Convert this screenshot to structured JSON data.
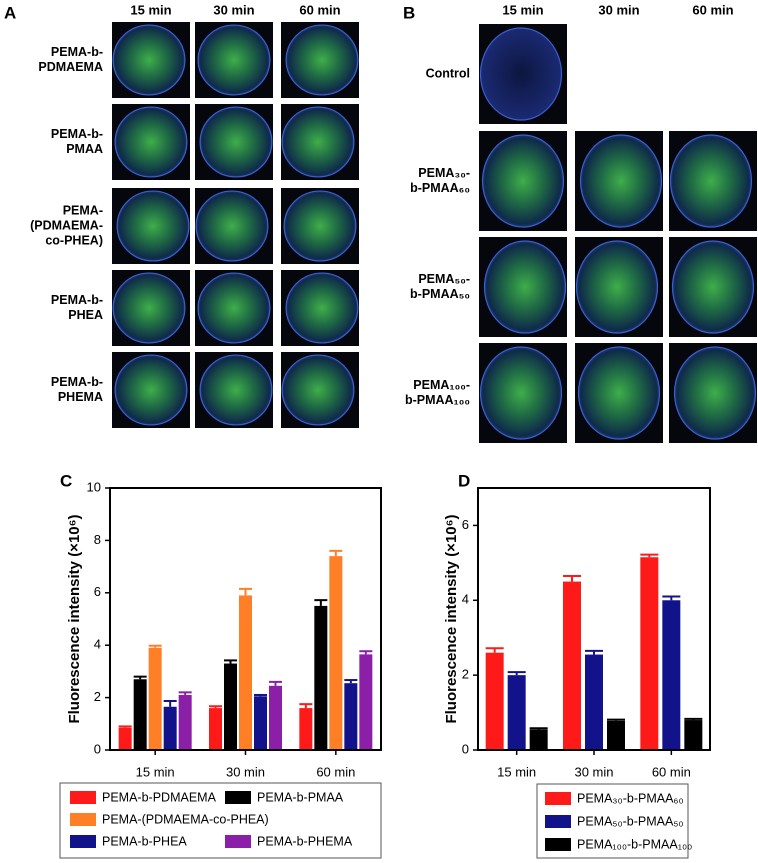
{
  "panel_a": {
    "label": "A",
    "columns": [
      "15 min",
      "30 min",
      "60 min"
    ],
    "rows": [
      [
        "PEMA-b-",
        "PDMAEMA"
      ],
      [
        "PEMA-b-",
        "PMAA"
      ],
      [
        "PEMA-",
        "(PDMAEMA-",
        "co-PHEA)"
      ],
      [
        "PEMA-b-",
        "PHEA"
      ],
      [
        "PEMA-b-",
        "PHEMA"
      ]
    ]
  },
  "panel_b": {
    "label": "B",
    "columns": [
      "15 min",
      "30 min",
      "60 min"
    ],
    "rows": [
      [
        "Control"
      ],
      [
        "PEMA₃₀-",
        "b-PMAA₆₀"
      ],
      [
        "PEMA₅₀-",
        "b-PMAA₅₀"
      ],
      [
        "PEMA₁₀₀-",
        "b-PMAA₁₀₀"
      ]
    ]
  },
  "chart_data": [
    {
      "type": "bar",
      "panel_label": "C",
      "y_label": "Fluorescence intensity (×10⁶)",
      "categories": [
        "15 min",
        "30 min",
        "60 min"
      ],
      "ylim": [
        0,
        10
      ],
      "yticks": [
        0,
        2,
        4,
        6,
        8,
        10
      ],
      "series": [
        {
          "name": "PEMA-b-PDMAEMA",
          "color": "#ff1a1a",
          "values": [
            0.85,
            1.6,
            1.6
          ],
          "errors": [
            0.05,
            0.07,
            0.15
          ]
        },
        {
          "name": "PEMA-b-PMAA",
          "color": "#000000",
          "values": [
            2.7,
            3.3,
            5.5
          ],
          "errors": [
            0.1,
            0.12,
            0.22
          ]
        },
        {
          "name": "PEMA-(PDMAEMA-co-PHEA)",
          "color": "#ff7f27",
          "values": [
            3.9,
            5.9,
            7.4
          ],
          "errors": [
            0.08,
            0.25,
            0.2
          ]
        },
        {
          "name": "PEMA-b-PHEA",
          "color": "#12128a",
          "values": [
            1.65,
            2.05,
            2.55
          ],
          "errors": [
            0.22,
            0.05,
            0.12
          ]
        },
        {
          "name": "PEMA-b-PHEMA",
          "color": "#8b1fa8",
          "values": [
            2.1,
            2.45,
            3.65
          ],
          "errors": [
            0.1,
            0.15,
            0.12
          ]
        }
      ]
    },
    {
      "type": "bar",
      "panel_label": "D",
      "y_label": "Fluorescence intensity (×10⁶)",
      "categories": [
        "15 min",
        "30 min",
        "60 min"
      ],
      "ylim": [
        0,
        7
      ],
      "yticks": [
        0,
        2,
        4,
        6
      ],
      "series": [
        {
          "name": "PEMA₃₀-b-PMAA₆₀",
          "color": "#ff1a1a",
          "values": [
            2.6,
            4.5,
            5.15
          ],
          "errors": [
            0.12,
            0.15,
            0.07
          ]
        },
        {
          "name": "PEMA₅₀-b-PMAA₅₀",
          "color": "#12128a",
          "values": [
            2.0,
            2.55,
            4.0
          ],
          "errors": [
            0.08,
            0.1,
            0.1
          ]
        },
        {
          "name": "PEMA₁₀₀-b-PMAA₁₀₀",
          "color": "#000000",
          "values": [
            0.55,
            0.78,
            0.8
          ],
          "errors": [
            0.03,
            0.03,
            0.03
          ]
        }
      ]
    }
  ]
}
